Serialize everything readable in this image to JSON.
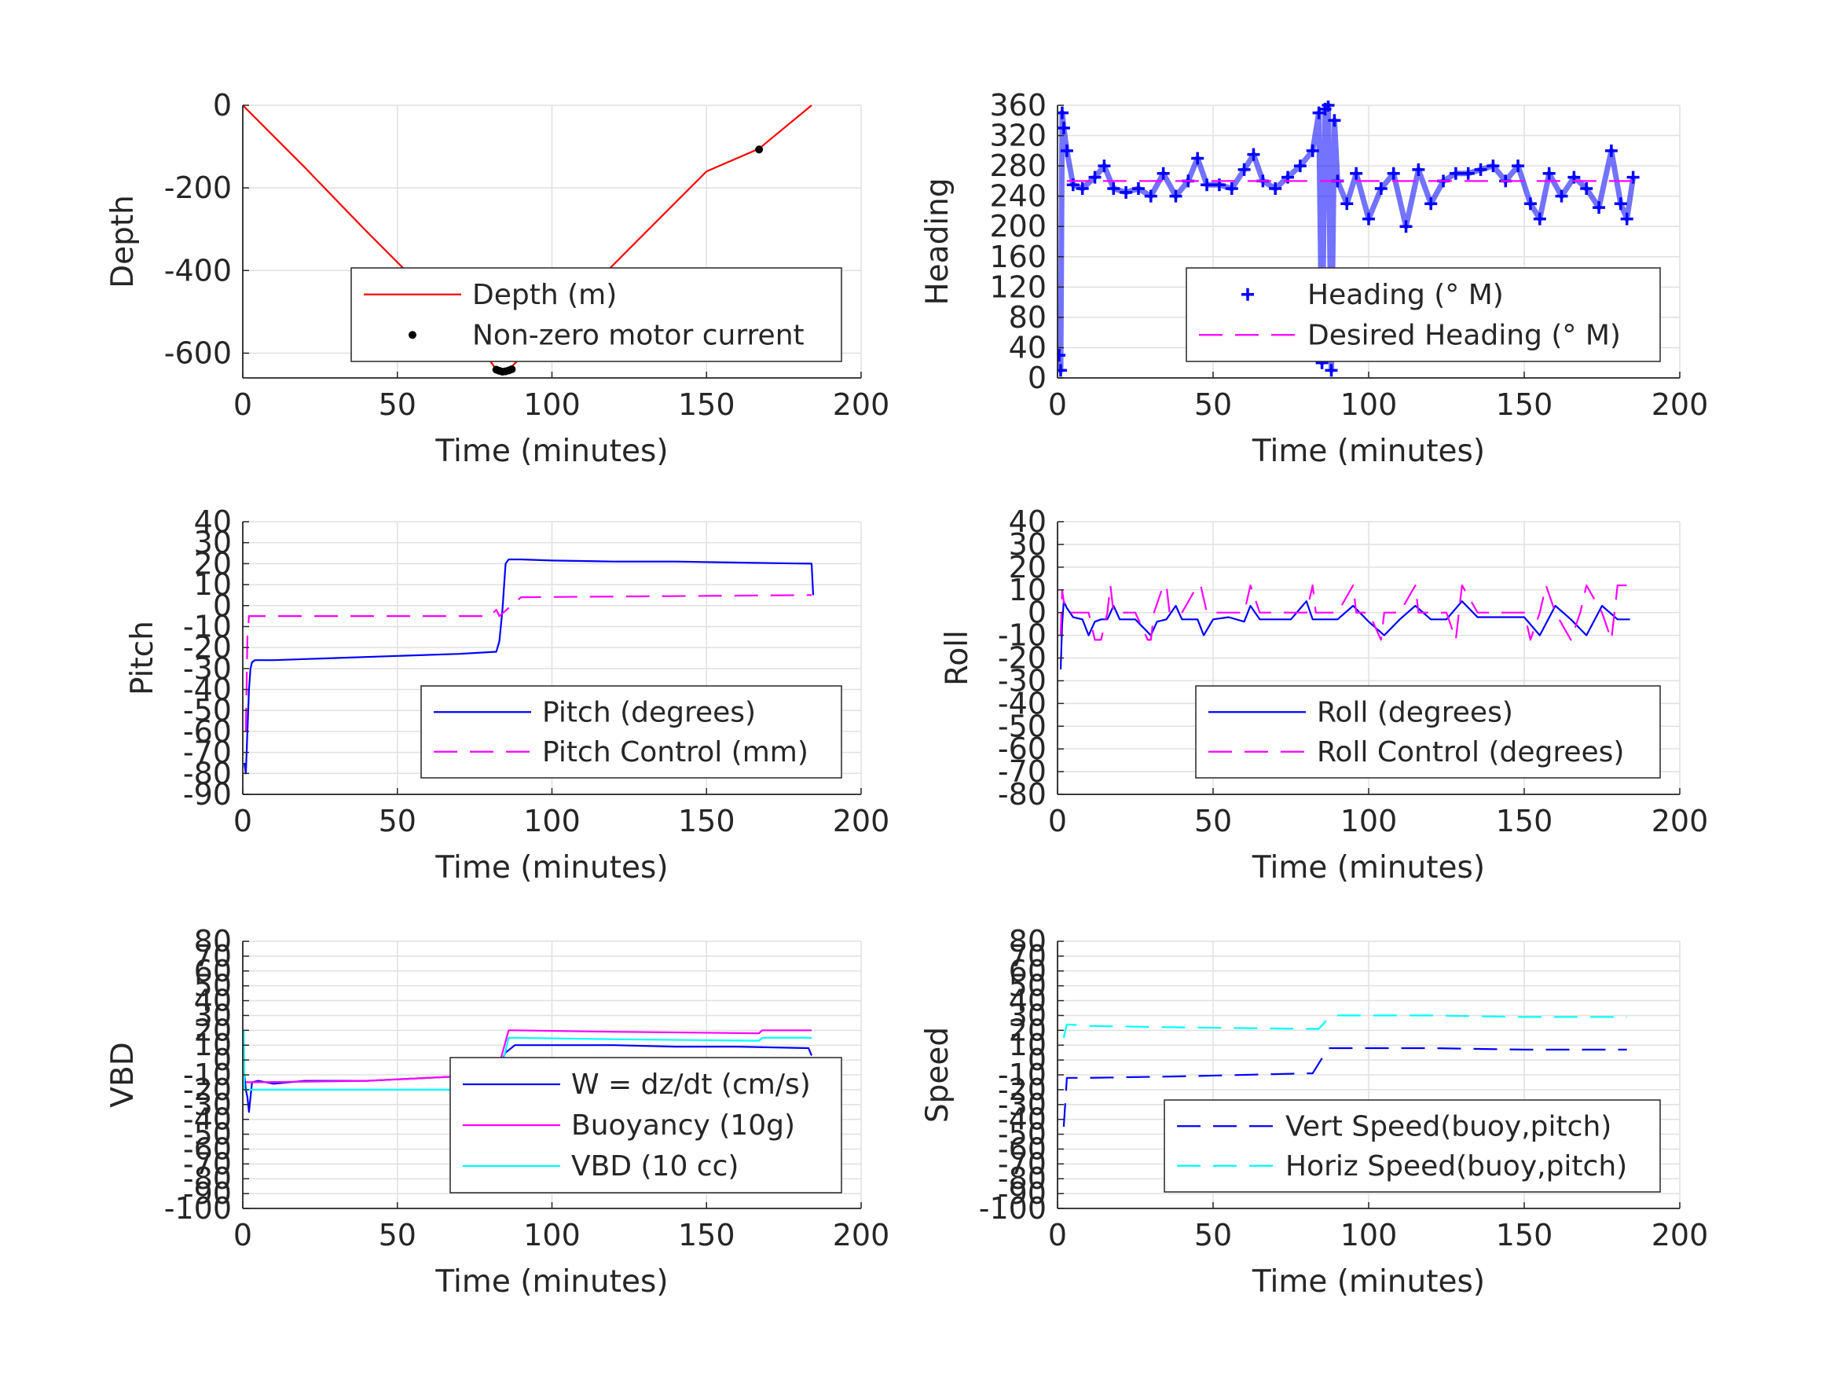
{
  "chart_data": [
    {
      "id": "depth",
      "type": "line",
      "xlabel": "Time (minutes)",
      "ylabel": "Depth",
      "xlim": [
        0,
        200
      ],
      "ylim": [
        -660,
        0
      ],
      "x_ticks": [
        0,
        50,
        100,
        150,
        200
      ],
      "y_ticks": [
        0,
        -200,
        -400,
        -600
      ],
      "y_tick_labels": [
        "0",
        "-200",
        "-400",
        "-600"
      ],
      "grid": true,
      "legend_position": "bottom-right",
      "series": [
        {
          "name": "Depth (m)",
          "color": "#ff0000",
          "style": "solid",
          "x": [
            0,
            20,
            40,
            60,
            75,
            82,
            84,
            86,
            90,
            110,
            130,
            150,
            167,
            184
          ],
          "y": [
            0,
            -150,
            -305,
            -455,
            -565,
            -640,
            -645,
            -640,
            -610,
            -460,
            -310,
            -160,
            -105,
            0
          ]
        },
        {
          "name": "Non-zero motor current",
          "color": "#000000",
          "style": "dots",
          "x": [
            82,
            83,
            84,
            85,
            86,
            87,
            167
          ],
          "y": [
            -640,
            -643,
            -645,
            -644,
            -642,
            -639,
            -107
          ]
        }
      ]
    },
    {
      "id": "heading",
      "type": "scatter",
      "xlabel": "Time (minutes)",
      "ylabel": "Heading",
      "xlim": [
        0,
        200
      ],
      "ylim": [
        0,
        360
      ],
      "x_ticks": [
        0,
        50,
        100,
        150,
        200
      ],
      "y_ticks": [
        0,
        40,
        80,
        120,
        160,
        200,
        240,
        280,
        320,
        360
      ],
      "y_tick_labels": [
        "0",
        "40",
        "80",
        "120",
        "160",
        "200",
        "240",
        "280",
        "320",
        "360"
      ],
      "grid": true,
      "legend_position": "bottom-right",
      "series": [
        {
          "name": "Heading (° M)",
          "color": "#0000ff",
          "style": "plus",
          "x": [
            0.5,
            1,
            1.5,
            2,
            3,
            5,
            8,
            12,
            15,
            18,
            22,
            26,
            30,
            34,
            38,
            42,
            45,
            48,
            52,
            56,
            60,
            63,
            66,
            70,
            74,
            78,
            82,
            84,
            85,
            86,
            87,
            88,
            89,
            90,
            93,
            96,
            100,
            104,
            108,
            112,
            116,
            120,
            124,
            128,
            132,
            136,
            140,
            144,
            148,
            152,
            155,
            158,
            162,
            166,
            170,
            174,
            178,
            181,
            183,
            185
          ],
          "y": [
            30,
            10,
            350,
            330,
            300,
            255,
            250,
            265,
            280,
            250,
            245,
            250,
            240,
            270,
            240,
            260,
            290,
            255,
            255,
            250,
            275,
            295,
            260,
            250,
            265,
            280,
            300,
            350,
            20,
            355,
            360,
            10,
            340,
            260,
            230,
            270,
            210,
            250,
            270,
            200,
            275,
            230,
            260,
            270,
            270,
            275,
            280,
            260,
            280,
            230,
            210,
            270,
            240,
            265,
            250,
            225,
            300,
            230,
            210,
            265
          ]
        },
        {
          "name": "Desired Heading (° M)",
          "color": "#ff00ff",
          "style": "dashed",
          "x": [
            3,
            185
          ],
          "y": [
            260,
            260
          ]
        }
      ]
    },
    {
      "id": "pitch",
      "type": "line",
      "xlabel": "Time (minutes)",
      "ylabel": "Pitch",
      "xlim": [
        0,
        200
      ],
      "ylim": [
        -90,
        40
      ],
      "x_ticks": [
        0,
        50,
        100,
        150,
        200
      ],
      "y_ticks": [
        40,
        30,
        20,
        10,
        0,
        -10,
        -20,
        -30,
        -40,
        -50,
        -60,
        -70,
        -80,
        -90
      ],
      "y_tick_labels": [
        "40",
        "30",
        "20",
        "10",
        "0",
        "-10",
        "-20",
        "-30",
        "-40",
        "-50",
        "-60",
        "-70",
        "-80",
        "-90"
      ],
      "grid": true,
      "legend_position": "bottom-right",
      "series": [
        {
          "name": "Pitch (degrees)",
          "color": "#0000ff",
          "style": "solid",
          "x": [
            0.5,
            1,
            1.5,
            2,
            2.5,
            3,
            4,
            10,
            30,
            50,
            70,
            82,
            83,
            84,
            85,
            86,
            90,
            100,
            120,
            140,
            160,
            184,
            184.5
          ],
          "y": [
            -75,
            -80,
            -60,
            -40,
            -30,
            -27,
            -26,
            -26,
            -25,
            -24,
            -23,
            -22,
            -17,
            -2,
            20,
            22,
            22,
            21.5,
            21,
            21,
            20.5,
            20,
            5
          ]
        },
        {
          "name": "Pitch Control (mm)",
          "color": "#ff00ff",
          "style": "dashed",
          "x": [
            1,
            1.5,
            2,
            80,
            82,
            83,
            90,
            184
          ],
          "y": [
            -60,
            -15,
            -5,
            -5,
            -2,
            -5,
            4,
            5
          ]
        }
      ]
    },
    {
      "id": "roll",
      "type": "line",
      "xlabel": "Time (minutes)",
      "ylabel": "Roll",
      "xlim": [
        0,
        200
      ],
      "ylim": [
        -80,
        40
      ],
      "x_ticks": [
        0,
        50,
        100,
        150,
        200
      ],
      "y_ticks": [
        40,
        30,
        20,
        10,
        0,
        -10,
        -20,
        -30,
        -40,
        -50,
        -60,
        -70,
        -80
      ],
      "y_tick_labels": [
        "40",
        "30",
        "20",
        "10",
        "0",
        "-10",
        "-20",
        "-30",
        "-40",
        "-50",
        "-60",
        "-70",
        "-80"
      ],
      "grid": true,
      "legend_position": "bottom-right",
      "series": [
        {
          "name": "Roll (degrees)",
          "color": "#0000ff",
          "style": "solid",
          "x": [
            1,
            1.5,
            2,
            3,
            5,
            8,
            10,
            12,
            14,
            16,
            18,
            20,
            25,
            30,
            32,
            35,
            38,
            40,
            45,
            47,
            50,
            55,
            60,
            62,
            65,
            70,
            75,
            80,
            82,
            85,
            90,
            95,
            100,
            105,
            110,
            115,
            120,
            125,
            130,
            135,
            140,
            150,
            155,
            160,
            165,
            170,
            175,
            180,
            184
          ],
          "y": [
            -25,
            -5,
            5,
            2,
            -2,
            -3,
            -10,
            -4,
            -3,
            -3,
            3,
            -3,
            -3,
            -10,
            -4,
            -3,
            3,
            -3,
            -3,
            -10,
            -3,
            -2,
            -4,
            3,
            -3,
            -3,
            -3,
            5,
            -3,
            -3,
            -3,
            3,
            -4,
            -10,
            -3,
            3,
            -3,
            -3,
            5,
            -2,
            -2,
            -2,
            -10,
            3,
            -3,
            -10,
            3,
            -3,
            -3
          ]
        },
        {
          "name": "Roll Control (degrees)",
          "color": "#ff00ff",
          "style": "dashed",
          "x": [
            1,
            1.5,
            2,
            3,
            5,
            8,
            10,
            12,
            14,
            16,
            17,
            18,
            20,
            25,
            29,
            30,
            31,
            34,
            35,
            36,
            38,
            40,
            45,
            46,
            48,
            50,
            55,
            60,
            62,
            65,
            70,
            80,
            82,
            83,
            85,
            90,
            95,
            96,
            100,
            104,
            105,
            110,
            115,
            116,
            120,
            125,
            128,
            130,
            135,
            140,
            150,
            152,
            155,
            157,
            160,
            165,
            168,
            170,
            175,
            178,
            180,
            184
          ],
          "y": [
            -10,
            10,
            5,
            0,
            0,
            0,
            0,
            -12,
            -12,
            0,
            12,
            0,
            0,
            0,
            -12,
            -12,
            0,
            12,
            12,
            0,
            0,
            0,
            12,
            12,
            0,
            0,
            0,
            0,
            12,
            0,
            0,
            0,
            12,
            0,
            0,
            0,
            12,
            0,
            0,
            -12,
            0,
            0,
            12,
            0,
            0,
            0,
            -12,
            12,
            0,
            0,
            0,
            -12,
            0,
            12,
            0,
            -12,
            0,
            12,
            0,
            -12,
            12,
            12
          ]
        }
      ]
    },
    {
      "id": "vbd",
      "type": "line",
      "xlabel": "Time (minutes)",
      "ylabel": "VBD",
      "xlim": [
        0,
        200
      ],
      "ylim": [
        -100,
        80
      ],
      "x_ticks": [
        0,
        50,
        100,
        150,
        200
      ],
      "y_ticks": [
        80,
        70,
        60,
        50,
        40,
        30,
        20,
        10,
        0,
        -10,
        -20,
        -30,
        -40,
        -50,
        -60,
        -70,
        -80,
        -90,
        -100
      ],
      "y_tick_labels": [
        "80",
        "70",
        "60",
        "50",
        "40",
        "30",
        "20",
        "10",
        "0",
        "-10",
        "-20",
        "-30",
        "-40",
        "-50",
        "-60",
        "-70",
        "-80",
        "-90",
        "-100"
      ],
      "grid": true,
      "legend_position": "bottom-right",
      "series": [
        {
          "name": "W = dz/dt (cm/s)",
          "color": "#0000ff",
          "style": "solid",
          "x": [
            0.5,
            1,
            1.5,
            2,
            3,
            5,
            10,
            20,
            40,
            60,
            80,
            82,
            85,
            88,
            100,
            120,
            140,
            160,
            183,
            184
          ],
          "y": [
            -10,
            -20,
            -25,
            -35,
            -15,
            -14,
            -16,
            -14,
            -14,
            -12,
            -10,
            -8,
            5,
            10,
            10,
            10,
            9,
            9,
            8,
            3
          ]
        },
        {
          "name": "Buoyancy (10g)",
          "color": "#ff00ff",
          "style": "solid",
          "x": [
            1,
            2,
            5,
            40,
            80,
            82,
            86,
            88,
            120,
            167,
            168,
            184
          ],
          "y": [
            -15,
            -15,
            -15,
            -14,
            -10,
            -10,
            20,
            20,
            19,
            18,
            20,
            20
          ]
        },
        {
          "name": "VBD (10 cc)",
          "color": "#00ffff",
          "style": "solid",
          "x": [
            0.3,
            0.5,
            1,
            2,
            5,
            80,
            82,
            86,
            88,
            120,
            167,
            168,
            184
          ],
          "y": [
            20,
            -20,
            -20,
            -20,
            -20,
            -20,
            -20,
            15,
            15,
            14,
            13,
            15,
            15
          ]
        }
      ]
    },
    {
      "id": "speed",
      "type": "line",
      "xlabel": "Time (minutes)",
      "ylabel": "Speed",
      "xlim": [
        0,
        200
      ],
      "ylim": [
        -100,
        80
      ],
      "x_ticks": [
        0,
        50,
        100,
        150,
        200
      ],
      "y_ticks": [
        80,
        70,
        60,
        50,
        40,
        30,
        20,
        10,
        0,
        -10,
        -20,
        -30,
        -40,
        -50,
        -60,
        -70,
        -80,
        -90,
        -100
      ],
      "y_tick_labels": [
        "80",
        "70",
        "60",
        "50",
        "40",
        "30",
        "20",
        "10",
        "0",
        "-10",
        "-20",
        "-30",
        "-40",
        "-50",
        "-60",
        "-70",
        "-80",
        "-90",
        "-100"
      ],
      "grid": true,
      "legend_position": "bottom-right",
      "series": [
        {
          "name": "Vert Speed(buoy,pitch)",
          "color": "#0000ff",
          "style": "dashed",
          "x": [
            2,
            3,
            10,
            40,
            80,
            82,
            87,
            90,
            120,
            150,
            183
          ],
          "y": [
            -45,
            -12,
            -12,
            -11,
            -9,
            -9,
            8,
            8,
            8,
            7,
            7
          ]
        },
        {
          "name": "Horiz Speed(buoy,pitch)",
          "color": "#00ffff",
          "style": "dashed",
          "x": [
            2,
            3,
            10,
            40,
            80,
            84,
            87,
            90,
            120,
            150,
            183
          ],
          "y": [
            15,
            24,
            23,
            22,
            21,
            21,
            28,
            30,
            30,
            29,
            29
          ]
        }
      ]
    }
  ]
}
